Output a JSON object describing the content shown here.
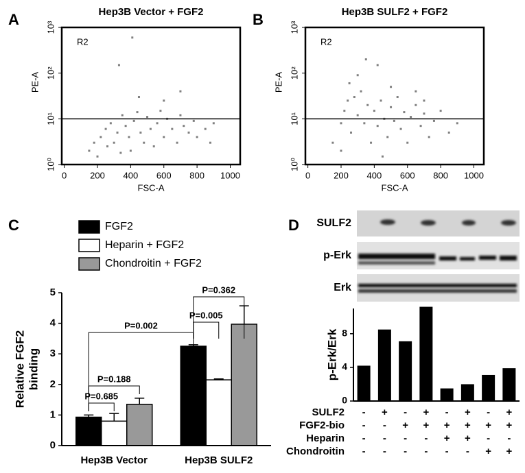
{
  "chart_data": [
    {
      "type": "scatter",
      "panel_label": "A",
      "title": "Hep3B Vector + FGF2",
      "xlabel": "FSC-A",
      "ylabel": "PE-A",
      "annotation": "R2",
      "color": "#808080",
      "log_y": true,
      "hline": 10,
      "xlim": [
        -15,
        1060
      ],
      "xticks": [
        0,
        200,
        400,
        600,
        800,
        1000
      ],
      "ylim": [
        1,
        1000
      ],
      "yticks": [
        {
          "value": 1,
          "label": "10⁰"
        },
        {
          "value": 10,
          "label": "10¹"
        },
        {
          "value": 100,
          "label": "10²"
        },
        {
          "value": 1000,
          "label": "10³"
        }
      ],
      "x": [
        150,
        180,
        200,
        220,
        250,
        260,
        280,
        300,
        320,
        340,
        350,
        370,
        390,
        400,
        420,
        440,
        460,
        480,
        500,
        520,
        540,
        560,
        580,
        600,
        620,
        650,
        680,
        700,
        720,
        750,
        780,
        800,
        850,
        880,
        900,
        330,
        410,
        600,
        700,
        450
      ],
      "y": [
        2,
        3,
        1.5,
        4,
        6,
        2.5,
        8,
        3,
        5,
        1.8,
        12,
        7,
        4,
        2,
        9,
        14,
        5,
        3,
        11,
        6,
        2.5,
        8,
        15,
        4,
        10,
        6,
        3,
        12,
        7,
        5,
        9,
        4,
        6,
        3,
        8,
        150,
        600,
        25,
        40,
        30
      ]
    },
    {
      "type": "scatter",
      "panel_label": "B",
      "title": "Hep3B SULF2 + FGF2",
      "xlabel": "FSC-A",
      "ylabel": "PE-A",
      "annotation": "R2",
      "color": "#808080",
      "log_y": true,
      "hline": 10,
      "xlim": [
        -15,
        1060
      ],
      "xticks": [
        0,
        200,
        400,
        600,
        800,
        1000
      ],
      "ylim": [
        1,
        1000
      ],
      "yticks": [
        {
          "value": 1,
          "label": "10⁰"
        },
        {
          "value": 10,
          "label": "10¹"
        },
        {
          "value": 100,
          "label": "10²"
        },
        {
          "value": 1000,
          "label": "10³"
        }
      ],
      "x": [
        150,
        200,
        220,
        240,
        260,
        280,
        300,
        320,
        340,
        360,
        380,
        400,
        420,
        440,
        460,
        480,
        500,
        520,
        540,
        560,
        580,
        600,
        620,
        650,
        680,
        700,
        730,
        760,
        800,
        850,
        900,
        250,
        300,
        420,
        500,
        650,
        350,
        200,
        450,
        700
      ],
      "y": [
        3,
        8,
        15,
        25,
        5,
        30,
        12,
        40,
        8,
        20,
        3,
        15,
        7,
        25,
        10,
        4,
        18,
        9,
        30,
        6,
        14,
        3,
        11,
        20,
        7,
        13,
        4,
        9,
        15,
        5,
        8,
        60,
        90,
        150,
        50,
        40,
        200,
        2,
        1.5,
        25
      ]
    },
    {
      "type": "bar",
      "panel_label": "C",
      "ylabel": [
        "Relative FGF2",
        "binding"
      ],
      "categories": [
        "Hep3B Vector",
        "Hep3B SULF2"
      ],
      "series": [
        {
          "name": "FGF2",
          "color": "#000000",
          "values": [
            0.93,
            3.25
          ],
          "errors": [
            0.07,
            0.05
          ]
        },
        {
          "name": "Heparin + FGF2",
          "color": "#ffffff",
          "values": [
            0.8,
            2.15
          ],
          "errors": [
            0.25,
            0.03
          ]
        },
        {
          "name": "Chondroitin + FGF2",
          "color": "#999999",
          "values": [
            1.35,
            3.97
          ],
          "errors": [
            0.2,
            0.6
          ]
        }
      ],
      "ylim": [
        0,
        5
      ],
      "yticks": [
        0,
        1,
        2,
        3,
        4,
        5
      ],
      "annotations": [
        "P=0.685",
        "P=0.188",
        "P=0.002",
        "P=0.005",
        "P=0.362"
      ]
    },
    {
      "type": "bar",
      "panel_label": "D",
      "ylabel": "p-Erk/Erk",
      "color": "#000000",
      "blot_rows": [
        "SULF2",
        "p-Erk",
        "Erk"
      ],
      "categories": [
        null,
        null,
        null,
        null,
        null,
        null,
        null,
        null
      ],
      "values": [
        4.2,
        8.5,
        7.1,
        11.2,
        1.5,
        2.0,
        3.1,
        3.9
      ],
      "ylim": [
        0,
        11
      ],
      "yticks": [
        0,
        4,
        8
      ],
      "conditions": [
        {
          "label": "SULF2",
          "signs": [
            "-",
            "+",
            "-",
            "+",
            "-",
            "+",
            "-",
            "+"
          ]
        },
        {
          "label": "FGF2-bio",
          "signs": [
            "-",
            "-",
            "+",
            "+",
            "+",
            "+",
            "+",
            "+"
          ]
        },
        {
          "label": "Heparin",
          "signs": [
            "-",
            "-",
            "-",
            "-",
            "+",
            "+",
            "-",
            "-"
          ]
        },
        {
          "label": "Chondroitin",
          "signs": [
            "-",
            "-",
            "-",
            "-",
            "-",
            "-",
            "+",
            "+"
          ]
        }
      ]
    }
  ]
}
